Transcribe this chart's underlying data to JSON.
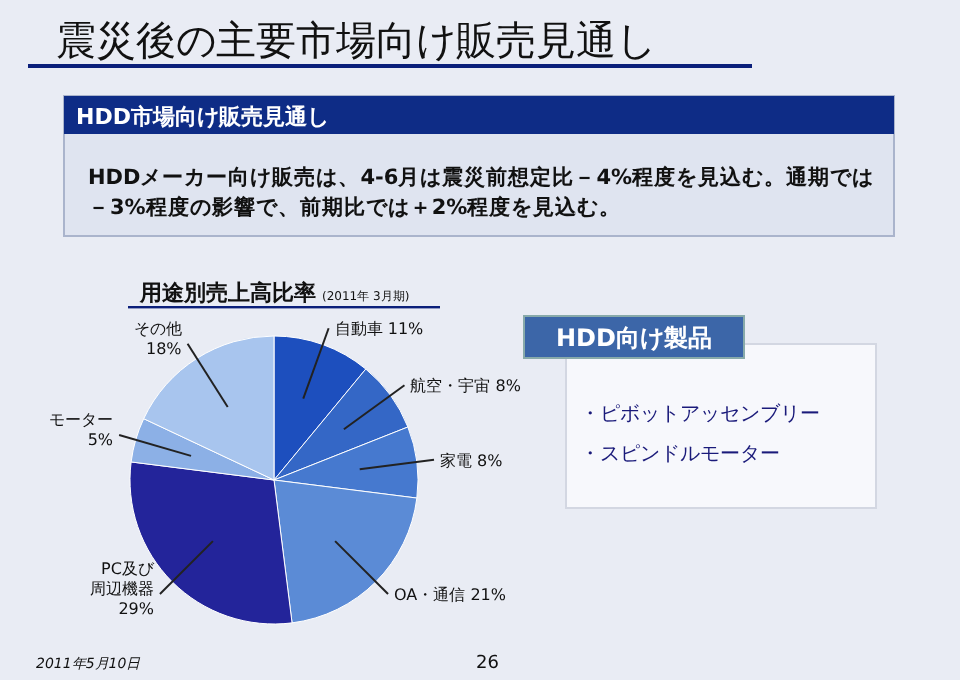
{
  "chart_data": {
    "type": "pie",
    "title": "震災後の主要市場向け販売見通し",
    "subtitle": "用途別売上高比率",
    "categories": [
      "自動車",
      "航空・宇宙",
      "家電",
      "OA・通信",
      "PC及び周辺機器",
      "モーター",
      "その他"
    ],
    "values": [
      11,
      8,
      8,
      21,
      29,
      5,
      18
    ],
    "value_labels": [
      "11%",
      "8%",
      "8%",
      "21%",
      "29%",
      "5%",
      "18%"
    ],
    "colors": [
      "#1d4fbe",
      "#3467c6",
      "#4679cf",
      "#5b8bd6",
      "#23249a",
      "#8cb0e6",
      "#a8c5ee"
    ],
    "annotations": [
      "(2011年 3月期)",
      "HDD市場向け販売見通し",
      "HDDメーカー向け販売は、4-6月は震災前想定比－4%程度を見込む。通期では－3%程度の影響で、前期比では＋2%程度を見込む。",
      "HDD向け製品",
      "・ピボットアッセンブリー",
      "・スピンドルモーター",
      "2011年5月10日",
      "26"
    ]
  }
}
